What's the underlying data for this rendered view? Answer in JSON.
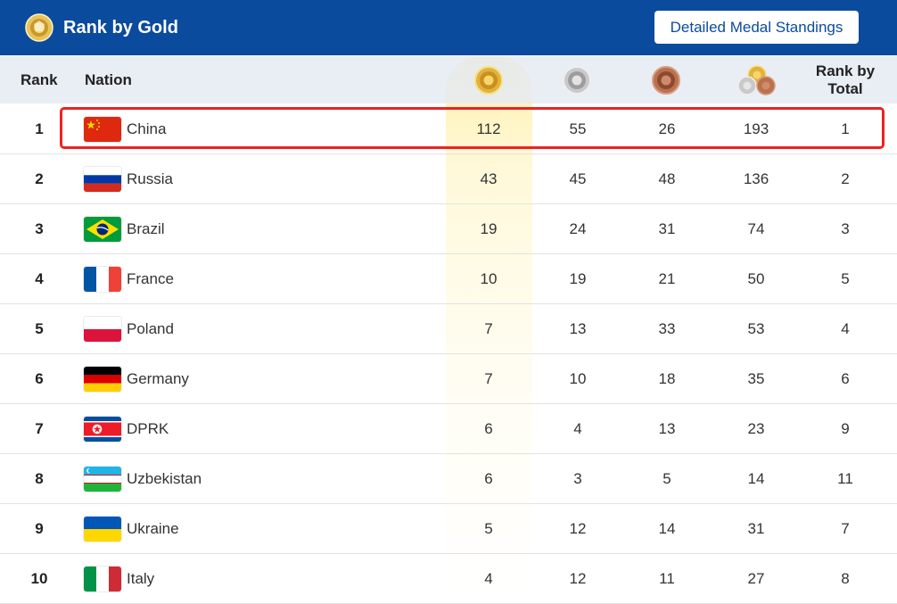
{
  "header": {
    "title": "Rank by Gold",
    "logo_icon": "medal-logo-icon",
    "detailed_button_label": "Detailed Medal Standings"
  },
  "columns": {
    "rank": "Rank",
    "nation": "Nation",
    "gold_icon": "gold-medal-icon",
    "silver_icon": "silver-medal-icon",
    "bronze_icon": "bronze-medal-icon",
    "total_icon": "all-medals-icon",
    "rank_by_total_line1": "Rank by",
    "rank_by_total_line2": "Total"
  },
  "rows": [
    {
      "rank": "1",
      "nation": "China",
      "flag": "china-flag-icon",
      "gold": "112",
      "silver": "55",
      "bronze": "26",
      "total": "193",
      "rank_by_total": "1"
    },
    {
      "rank": "2",
      "nation": "Russia",
      "flag": "russia-flag-icon",
      "gold": "43",
      "silver": "45",
      "bronze": "48",
      "total": "136",
      "rank_by_total": "2"
    },
    {
      "rank": "3",
      "nation": "Brazil",
      "flag": "brazil-flag-icon",
      "gold": "19",
      "silver": "24",
      "bronze": "31",
      "total": "74",
      "rank_by_total": "3"
    },
    {
      "rank": "4",
      "nation": "France",
      "flag": "france-flag-icon",
      "gold": "10",
      "silver": "19",
      "bronze": "21",
      "total": "50",
      "rank_by_total": "5"
    },
    {
      "rank": "5",
      "nation": "Poland",
      "flag": "poland-flag-icon",
      "gold": "7",
      "silver": "13",
      "bronze": "33",
      "total": "53",
      "rank_by_total": "4"
    },
    {
      "rank": "6",
      "nation": "Germany",
      "flag": "germany-flag-icon",
      "gold": "7",
      "silver": "10",
      "bronze": "18",
      "total": "35",
      "rank_by_total": "6"
    },
    {
      "rank": "7",
      "nation": "DPRK",
      "flag": "dprk-flag-icon",
      "gold": "6",
      "silver": "4",
      "bronze": "13",
      "total": "23",
      "rank_by_total": "9"
    },
    {
      "rank": "8",
      "nation": "Uzbekistan",
      "flag": "uzbekistan-flag-icon",
      "gold": "6",
      "silver": "3",
      "bronze": "5",
      "total": "14",
      "rank_by_total": "11"
    },
    {
      "rank": "9",
      "nation": "Ukraine",
      "flag": "ukraine-flag-icon",
      "gold": "5",
      "silver": "12",
      "bronze": "14",
      "total": "31",
      "rank_by_total": "7"
    },
    {
      "rank": "10",
      "nation": "Italy",
      "flag": "italy-flag-icon",
      "gold": "4",
      "silver": "12",
      "bronze": "11",
      "total": "27",
      "rank_by_total": "8"
    }
  ],
  "colors": {
    "header_bg": "#0b4b9e",
    "highlight": "#ee2222",
    "gold": "#d9a520",
    "silver": "#bfbfbf",
    "bronze": "#b86a48"
  },
  "highlighted_row": "China"
}
